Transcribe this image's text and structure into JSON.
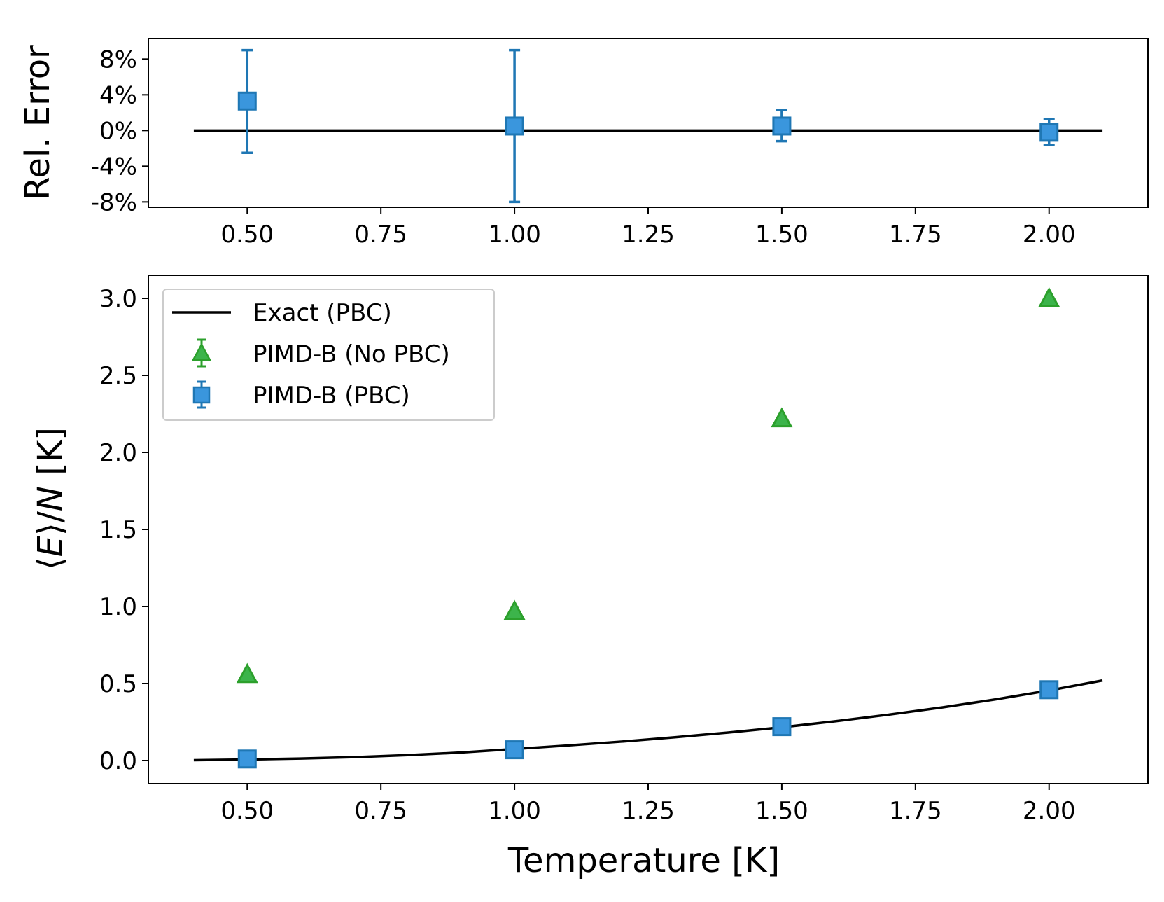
{
  "chart_data": [
    {
      "type": "scatter",
      "panel": "top",
      "title": "",
      "xlabel": "",
      "ylabel": "Rel. Error",
      "xlim": [
        0.315,
        2.185
      ],
      "ylim": [
        -8.6,
        10.3
      ],
      "xticks": [
        0.5,
        0.75,
        1.0,
        1.25,
        1.5,
        1.75,
        2.0
      ],
      "xtick_labels": [
        "0.50",
        "0.75",
        "1.00",
        "1.25",
        "1.50",
        "1.75",
        "2.00"
      ],
      "yticks": [
        8,
        4,
        0,
        -4,
        -8
      ],
      "ytick_labels": [
        "8%",
        "4%",
        "0%",
        "-4%",
        "-8%"
      ],
      "reference_line": {
        "y": 0,
        "x_range": [
          0.4,
          2.1
        ],
        "color": "#000000"
      },
      "series": [
        {
          "name": "PIMD-B (PBC)",
          "marker": "square",
          "color": "#3a96dd",
          "edge_color": "#1f77b4",
          "points": [
            {
              "x": 0.5,
              "y": 3.3,
              "err_low": -2.5,
              "err_high": 9.0
            },
            {
              "x": 1.0,
              "y": 0.5,
              "err_low": -8.0,
              "err_high": 9.0
            },
            {
              "x": 1.5,
              "y": 0.5,
              "err_low": -1.2,
              "err_high": 2.3
            },
            {
              "x": 2.0,
              "y": -0.2,
              "err_low": -1.6,
              "err_high": 1.3
            }
          ]
        }
      ]
    },
    {
      "type": "scatter",
      "panel": "bottom",
      "title": "",
      "xlabel": "Temperature [K]",
      "ylabel_prefix": "⟨",
      "ylabel_E": "E",
      "ylabel_mid": "⟩/",
      "ylabel_N": "N",
      "ylabel_suffix": " [K]",
      "xlim": [
        0.315,
        2.185
      ],
      "ylim": [
        -0.15,
        3.15
      ],
      "xticks": [
        0.5,
        0.75,
        1.0,
        1.25,
        1.5,
        1.75,
        2.0
      ],
      "xtick_labels": [
        "0.50",
        "0.75",
        "1.00",
        "1.25",
        "1.50",
        "1.75",
        "2.00"
      ],
      "yticks": [
        0.0,
        0.5,
        1.0,
        1.5,
        2.0,
        2.5,
        3.0
      ],
      "ytick_labels": [
        "0.0",
        "0.5",
        "1.0",
        "1.5",
        "2.0",
        "2.5",
        "3.0"
      ],
      "legend_position": "top-left",
      "series": [
        {
          "name": "Exact (PBC)",
          "kind": "line",
          "color": "#000000",
          "x": [
            0.4,
            0.5,
            0.6,
            0.7,
            0.8,
            0.9,
            1.0,
            1.1,
            1.2,
            1.3,
            1.4,
            1.5,
            1.6,
            1.7,
            1.8,
            1.9,
            2.0,
            2.1
          ],
          "y": [
            0.002,
            0.007,
            0.013,
            0.022,
            0.035,
            0.052,
            0.075,
            0.098,
            0.123,
            0.151,
            0.182,
            0.216,
            0.255,
            0.298,
            0.345,
            0.397,
            0.455,
            0.52
          ]
        },
        {
          "name": "PIMD-B (No PBC)",
          "kind": "points",
          "marker": "triangle",
          "color": "#3cb44b",
          "edge_color": "#2ca02c",
          "x": [
            0.5,
            1.0,
            1.5,
            2.0
          ],
          "y": [
            0.56,
            0.97,
            2.22,
            3.0
          ]
        },
        {
          "name": "PIMD-B (PBC)",
          "kind": "points",
          "marker": "square",
          "color": "#3a96dd",
          "edge_color": "#1f77b4",
          "x": [
            0.5,
            1.0,
            1.5,
            2.0
          ],
          "y": [
            0.01,
            0.07,
            0.22,
            0.46
          ]
        }
      ]
    }
  ]
}
